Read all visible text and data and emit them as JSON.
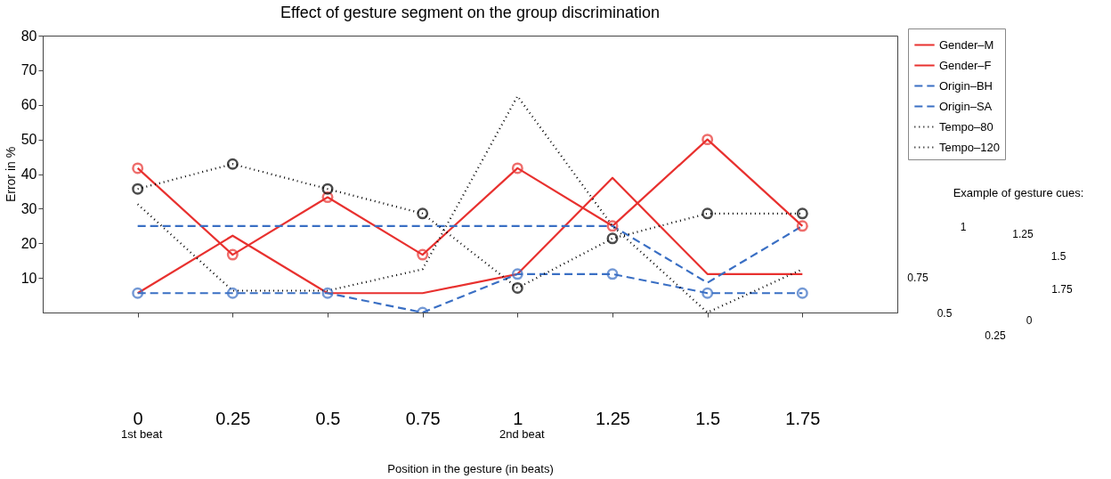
{
  "chart_data": {
    "type": "line",
    "title": "Effect of gesture segment on the group discrimination",
    "xlabel": "Position in the gesture (in beats)",
    "ylabel": "Error in %",
    "x": [
      0,
      0.25,
      0.5,
      0.75,
      1,
      1.25,
      1.5,
      1.75
    ],
    "series": [
      {
        "name": "Gender–M",
        "color": "#e8312f",
        "line_style": "solid",
        "marker": "circle",
        "values": [
          41.7,
          16.7,
          33.3,
          16.7,
          41.7,
          25,
          50,
          25
        ]
      },
      {
        "name": "Gender–F",
        "color": "#e8312f",
        "line_style": "solid",
        "marker": "none",
        "values": [
          5.6,
          22.2,
          5.6,
          5.6,
          11.1,
          38.9,
          11.1,
          11.1
        ]
      },
      {
        "name": "Origin–BH",
        "color": "#3a6fc4",
        "line_style": "dashed",
        "marker": "circle",
        "values": [
          5.6,
          5.6,
          5.6,
          0,
          11.1,
          11.1,
          5.6,
          5.6
        ]
      },
      {
        "name": "Origin–SA",
        "color": "#3a6fc4",
        "line_style": "dashed",
        "marker": "none",
        "values": [
          25,
          25,
          25,
          25,
          25,
          25,
          8.6,
          25
        ]
      },
      {
        "name": "Tempo–80",
        "color": "#000000",
        "line_style": "dotted",
        "marker": "circle",
        "values": [
          35.7,
          42.9,
          35.7,
          28.6,
          7.1,
          21.4,
          28.6,
          28.6
        ]
      },
      {
        "name": "Tempo–120",
        "color": "#000000",
        "line_style": "dotted",
        "marker": "none",
        "values": [
          31.3,
          6.3,
          6.3,
          12.5,
          62.5,
          25,
          0,
          12.5
        ]
      }
    ],
    "xlim": [
      -0.25,
      2
    ],
    "ylim": [
      0,
      80
    ],
    "xticks": [
      0,
      0.25,
      0.5,
      0.75,
      1,
      1.25,
      1.5,
      1.75
    ],
    "yticks": [
      10,
      20,
      30,
      40,
      50,
      60,
      70,
      80
    ],
    "grid": false,
    "legend": "top right",
    "annotations": [
      "1st beat",
      "2nd beat",
      "Example of gesture cues:",
      "1",
      "1.25",
      "1.5",
      "1.75",
      "0",
      "0.25",
      "0.5",
      "0.75"
    ]
  }
}
